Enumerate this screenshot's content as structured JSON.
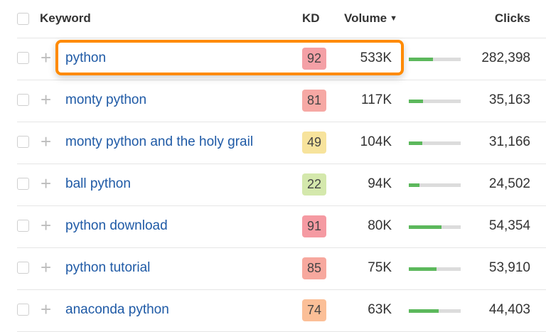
{
  "header": {
    "keyword_label": "Keyword",
    "kd_label": "KD",
    "volume_label": "Volume",
    "volume_sort_icon": "▼",
    "clicks_label": "Clicks"
  },
  "rows": [
    {
      "keyword": "python",
      "kd": "92",
      "kd_color": "#f4a0a6",
      "volume": "533K",
      "bar_pct": 47,
      "clicks": "282,398",
      "highlighted": true
    },
    {
      "keyword": "monty python",
      "kd": "81",
      "kd_color": "#f6a8a4",
      "volume": "117K",
      "bar_pct": 27,
      "clicks": "35,163"
    },
    {
      "keyword": "monty python and the holy grail",
      "kd": "49",
      "kd_color": "#f7e39c",
      "volume": "104K",
      "bar_pct": 26,
      "clicks": "31,166"
    },
    {
      "keyword": "ball python",
      "kd": "22",
      "kd_color": "#d4e8ac",
      "volume": "94K",
      "bar_pct": 20,
      "clicks": "24,502"
    },
    {
      "keyword": "python download",
      "kd": "91",
      "kd_color": "#f59aa2",
      "volume": "80K",
      "bar_pct": 63,
      "clicks": "54,354"
    },
    {
      "keyword": "python tutorial",
      "kd": "85",
      "kd_color": "#f7a89e",
      "volume": "75K",
      "bar_pct": 54,
      "clicks": "53,910"
    },
    {
      "keyword": "anaconda python",
      "kd": "74",
      "kd_color": "#fbbf97",
      "volume": "63K",
      "bar_pct": 58,
      "clicks": "44,403"
    }
  ],
  "colors": {
    "link": "#1f5aa6",
    "highlight": "#ff8a00",
    "bar_fill": "#5cb85c",
    "bar_track": "#dcdcdc"
  }
}
